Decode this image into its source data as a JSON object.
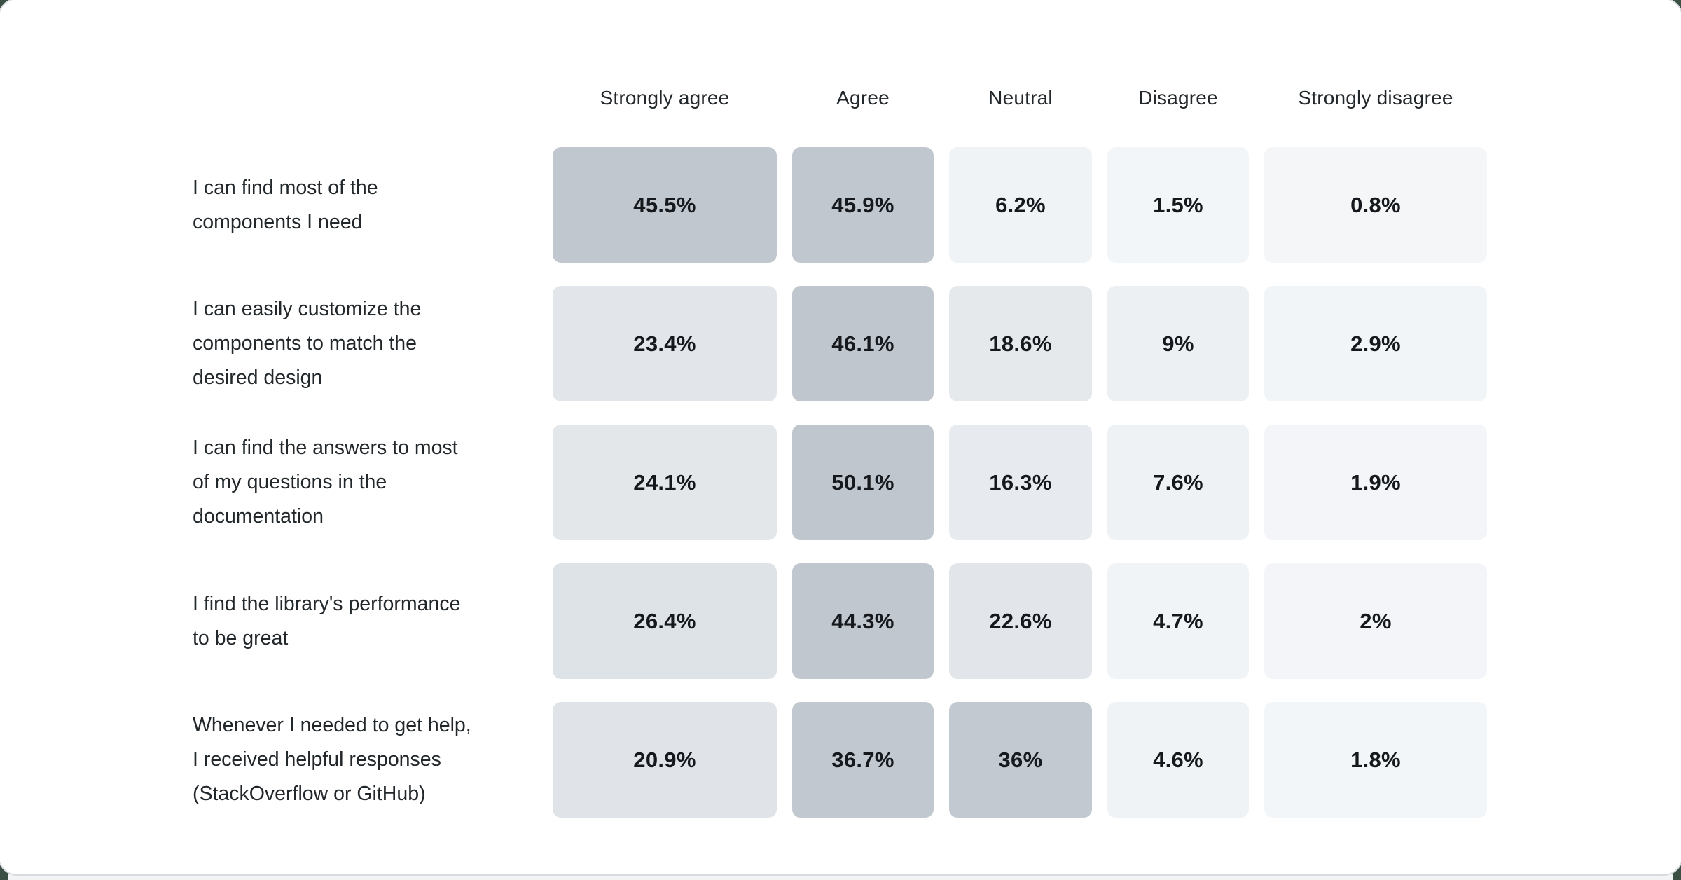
{
  "chart_data": {
    "type": "heatmap",
    "title": "",
    "columns": [
      "Strongly agree",
      "Agree",
      "Neutral",
      "Disagree",
      "Strongly disagree"
    ],
    "rows": [
      {
        "label": "I can find most of the components I need",
        "values": [
          45.5,
          45.9,
          6.2,
          1.5,
          0.8
        ]
      },
      {
        "label": "I can easily customize the components to match the desired design",
        "values": [
          23.4,
          46.1,
          18.6,
          9,
          2.9
        ]
      },
      {
        "label": "I can find the answers to most of my questions in the documentation",
        "values": [
          24.1,
          50.1,
          16.3,
          7.6,
          1.9
        ]
      },
      {
        "label": "I find the library's performance to be great",
        "values": [
          26.4,
          44.3,
          22.6,
          4.7,
          2
        ]
      },
      {
        "label": "Whenever I needed to get help, I received helpful responses (StackOverflow or GitHub)",
        "values": [
          20.9,
          36.7,
          36,
          4.6,
          1.8
        ]
      }
    ],
    "unit": "percent",
    "legend": "none",
    "grid": false,
    "color_scale": {
      "low": "#f4f6f8",
      "high": "#c0c6cd",
      "note": "darker cell = higher percentage"
    }
  },
  "table": {
    "headers": [
      "Strongly agree",
      "Agree",
      "Neutral",
      "Disagree",
      "Strongly disagree"
    ],
    "rows": [
      {
        "label": "I can find most of the\ncomponents I need",
        "cells": [
          {
            "text": "45.5%",
            "style": "background-color:#c1c7ce"
          },
          {
            "text": "45.9%",
            "style": "background-color:#c0c7ce"
          },
          {
            "text": "6.2%",
            "style": "background-color:#f0f3f6"
          },
          {
            "text": "1.5%",
            "style": "background-color:#f3f6f8"
          },
          {
            "text": "0.8%",
            "style": "background-color:#f4f6f8"
          }
        ]
      },
      {
        "label": "I can easily customize the\ncomponents to match the\ndesired design",
        "cells": [
          {
            "text": "23.4%",
            "style": "background-color:#e2e6ea"
          },
          {
            "text": "46.1%",
            "style": "background-color:#c0c6cd"
          },
          {
            "text": "18.6%",
            "style": "background-color:#e6e9ec"
          },
          {
            "text": "9%",
            "style": "background-color:#edf0f3"
          },
          {
            "text": "2.9%",
            "style": "background-color:#f2f5f7"
          }
        ]
      },
      {
        "label": "I can find the answers to most\nof my questions in the\ndocumentation",
        "cells": [
          {
            "text": "24.1%",
            "style": "background-color:#e3e7ea"
          },
          {
            "text": "50.1%",
            "style": "background-color:#c0c6cd"
          },
          {
            "text": "16.3%",
            "style": "background-color:#e7eaee"
          },
          {
            "text": "7.6%",
            "style": "background-color:#eff2f5"
          },
          {
            "text": "1.9%",
            "style": "background-color:#f3f5f8"
          }
        ]
      },
      {
        "label": "I find the library's performance\nto be great",
        "cells": [
          {
            "text": "26.4%",
            "style": "background-color:#dee3e7"
          },
          {
            "text": "44.3%",
            "style": "background-color:#c1c7ce"
          },
          {
            "text": "22.6%",
            "style": "background-color:#e2e6ea"
          },
          {
            "text": "4.7%",
            "style": "background-color:#f1f4f7"
          },
          {
            "text": "2%",
            "style": "background-color:#f3f5f8"
          }
        ]
      },
      {
        "label": "Whenever I needed to get help,\nI received helpful responses\n(StackOverflow or GitHub)",
        "cells": [
          {
            "text": "20.9%",
            "style": "background-color:#e0e4e8"
          },
          {
            "text": "36.7%",
            "style": "background-color:#c1c8cf"
          },
          {
            "text": "36%",
            "style": "background-color:#c2c9d0"
          },
          {
            "text": "4.6%",
            "style": "background-color:#f0f3f6"
          },
          {
            "text": "1.8%",
            "style": "background-color:#f3f6f8"
          }
        ]
      }
    ]
  }
}
